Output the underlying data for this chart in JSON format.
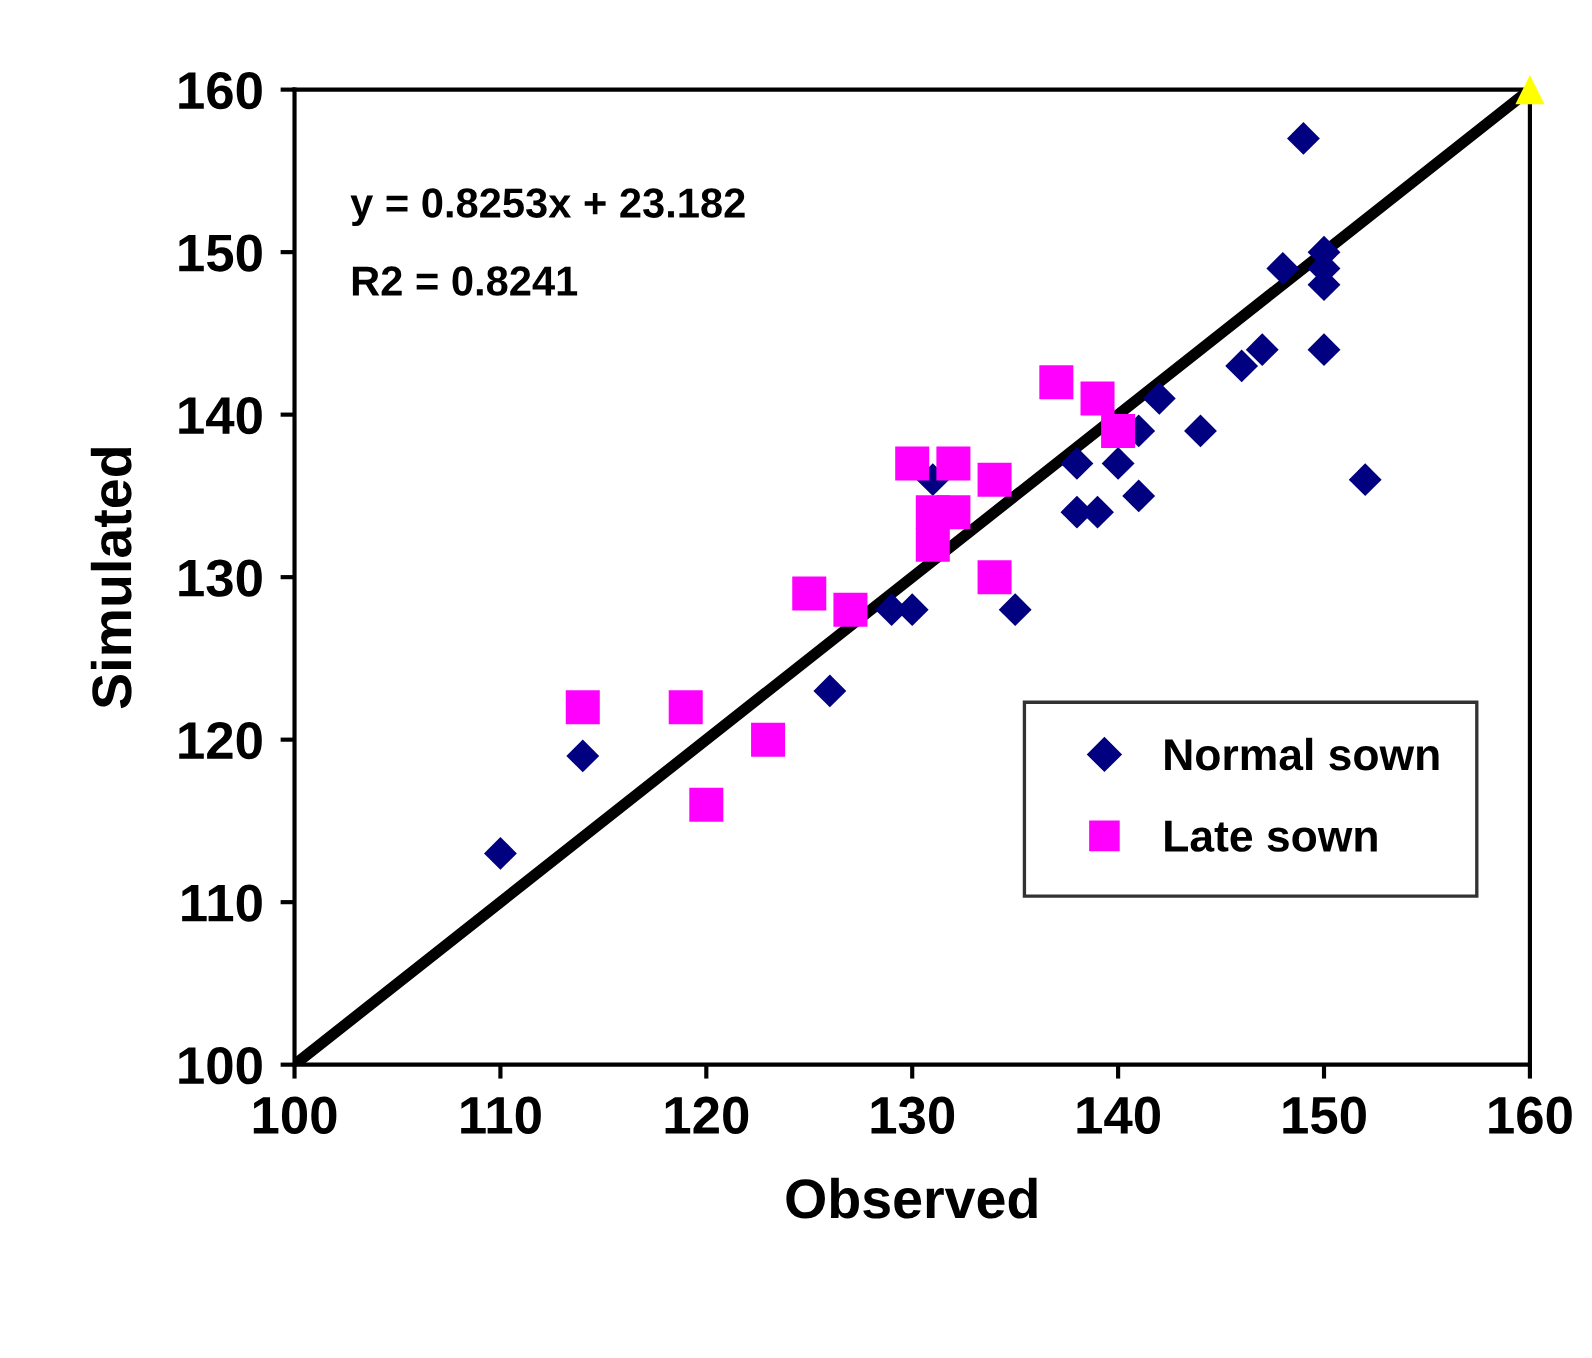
{
  "chart_data": {
    "type": "scatter",
    "xlabel": "Observed",
    "ylabel": "Simulated",
    "xlim": [
      100,
      160
    ],
    "ylim": [
      100,
      160
    ],
    "xticks": [
      100,
      110,
      120,
      130,
      140,
      150,
      160
    ],
    "yticks": [
      100,
      110,
      120,
      130,
      140,
      150,
      160
    ],
    "grid": false,
    "legend": "lower right",
    "annotations": [
      "y = 0.8253x + 23.182",
      "R2 = 0.8241"
    ],
    "series": [
      {
        "name": "Normal sown",
        "color": "#000080",
        "marker": "diamond",
        "x": [
          110,
          114,
          126,
          129,
          130,
          135,
          131,
          138,
          138,
          139,
          140,
          141,
          141,
          142,
          144,
          146,
          147,
          148,
          149,
          150,
          150,
          150,
          150,
          152
        ],
        "values": [
          113,
          119,
          123,
          128,
          128,
          128,
          136,
          137,
          134,
          134,
          137,
          139,
          135,
          141,
          139,
          143,
          144,
          149,
          157,
          150,
          149,
          148,
          144,
          136
        ]
      },
      {
        "name": "Late sown",
        "color": "#ff00ff",
        "marker": "square",
        "x": [
          114,
          119,
          120,
          123,
          125,
          127,
          130,
          132,
          134,
          131,
          132,
          131,
          134,
          137,
          139,
          140
        ],
        "values": [
          122,
          122,
          116,
          120,
          129,
          128,
          137,
          137,
          136,
          134,
          134,
          132,
          130,
          142,
          141,
          139
        ]
      },
      {
        "color": "#ffff00",
        "marker": "triangle",
        "x": [
          160
        ],
        "values": [
          160
        ]
      },
      {
        "type": "line",
        "color": "#000000",
        "marker": "none",
        "x": [
          100,
          160
        ],
        "values": [
          100,
          160
        ]
      }
    ]
  }
}
